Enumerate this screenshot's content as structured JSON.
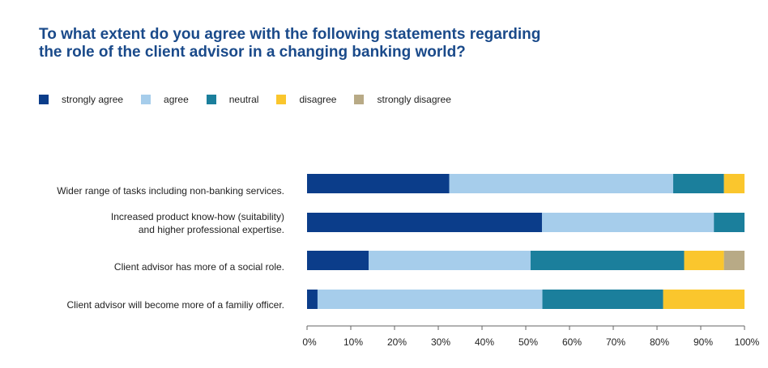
{
  "title_lines": [
    "To what extent do you agree with the following statements regarding",
    "the role of the client advisor in a changing banking world?"
  ],
  "legend": [
    {
      "label": "strongly agree",
      "color": "#0b3d8a"
    },
    {
      "label": "agree",
      "color": "#a6cdeb"
    },
    {
      "label": "neutral",
      "color": "#1b7f9c"
    },
    {
      "label": "disagree",
      "color": "#fac62d"
    },
    {
      "label": "strongly disagree",
      "color": "#b8aa86"
    }
  ],
  "chart_data": {
    "type": "bar",
    "orientation": "horizontal",
    "stacked": true,
    "categories": [
      "Wider range of tasks including non-banking services.",
      "Increased product know-how (suitability)\nand higher professional expertise.",
      "Client advisor has more of a social role.",
      "Client advisor will become more of a familiy officer."
    ],
    "series": [
      {
        "name": "strongly agree",
        "color": "#0b3d8a",
        "values": [
          32.5,
          53.7,
          14.1,
          2.4
        ]
      },
      {
        "name": "agree",
        "color": "#a6cdeb",
        "values": [
          51.2,
          39.3,
          37.0,
          51.4
        ]
      },
      {
        "name": "neutral",
        "color": "#1b7f9c",
        "values": [
          11.6,
          7.0,
          35.1,
          27.6
        ]
      },
      {
        "name": "disagree",
        "color": "#fac62d",
        "values": [
          4.7,
          0,
          9.1,
          18.6
        ]
      },
      {
        "name": "strongly disagree",
        "color": "#b8aa86",
        "values": [
          0,
          0,
          4.7,
          0
        ]
      }
    ],
    "xlim": [
      0,
      100
    ],
    "xticks": [
      "0%",
      "10%",
      "20%",
      "30%",
      "40%",
      "50%",
      "60%",
      "70%",
      "80%",
      "90%",
      "100%"
    ],
    "legend_position": "top-left",
    "grid": false
  }
}
